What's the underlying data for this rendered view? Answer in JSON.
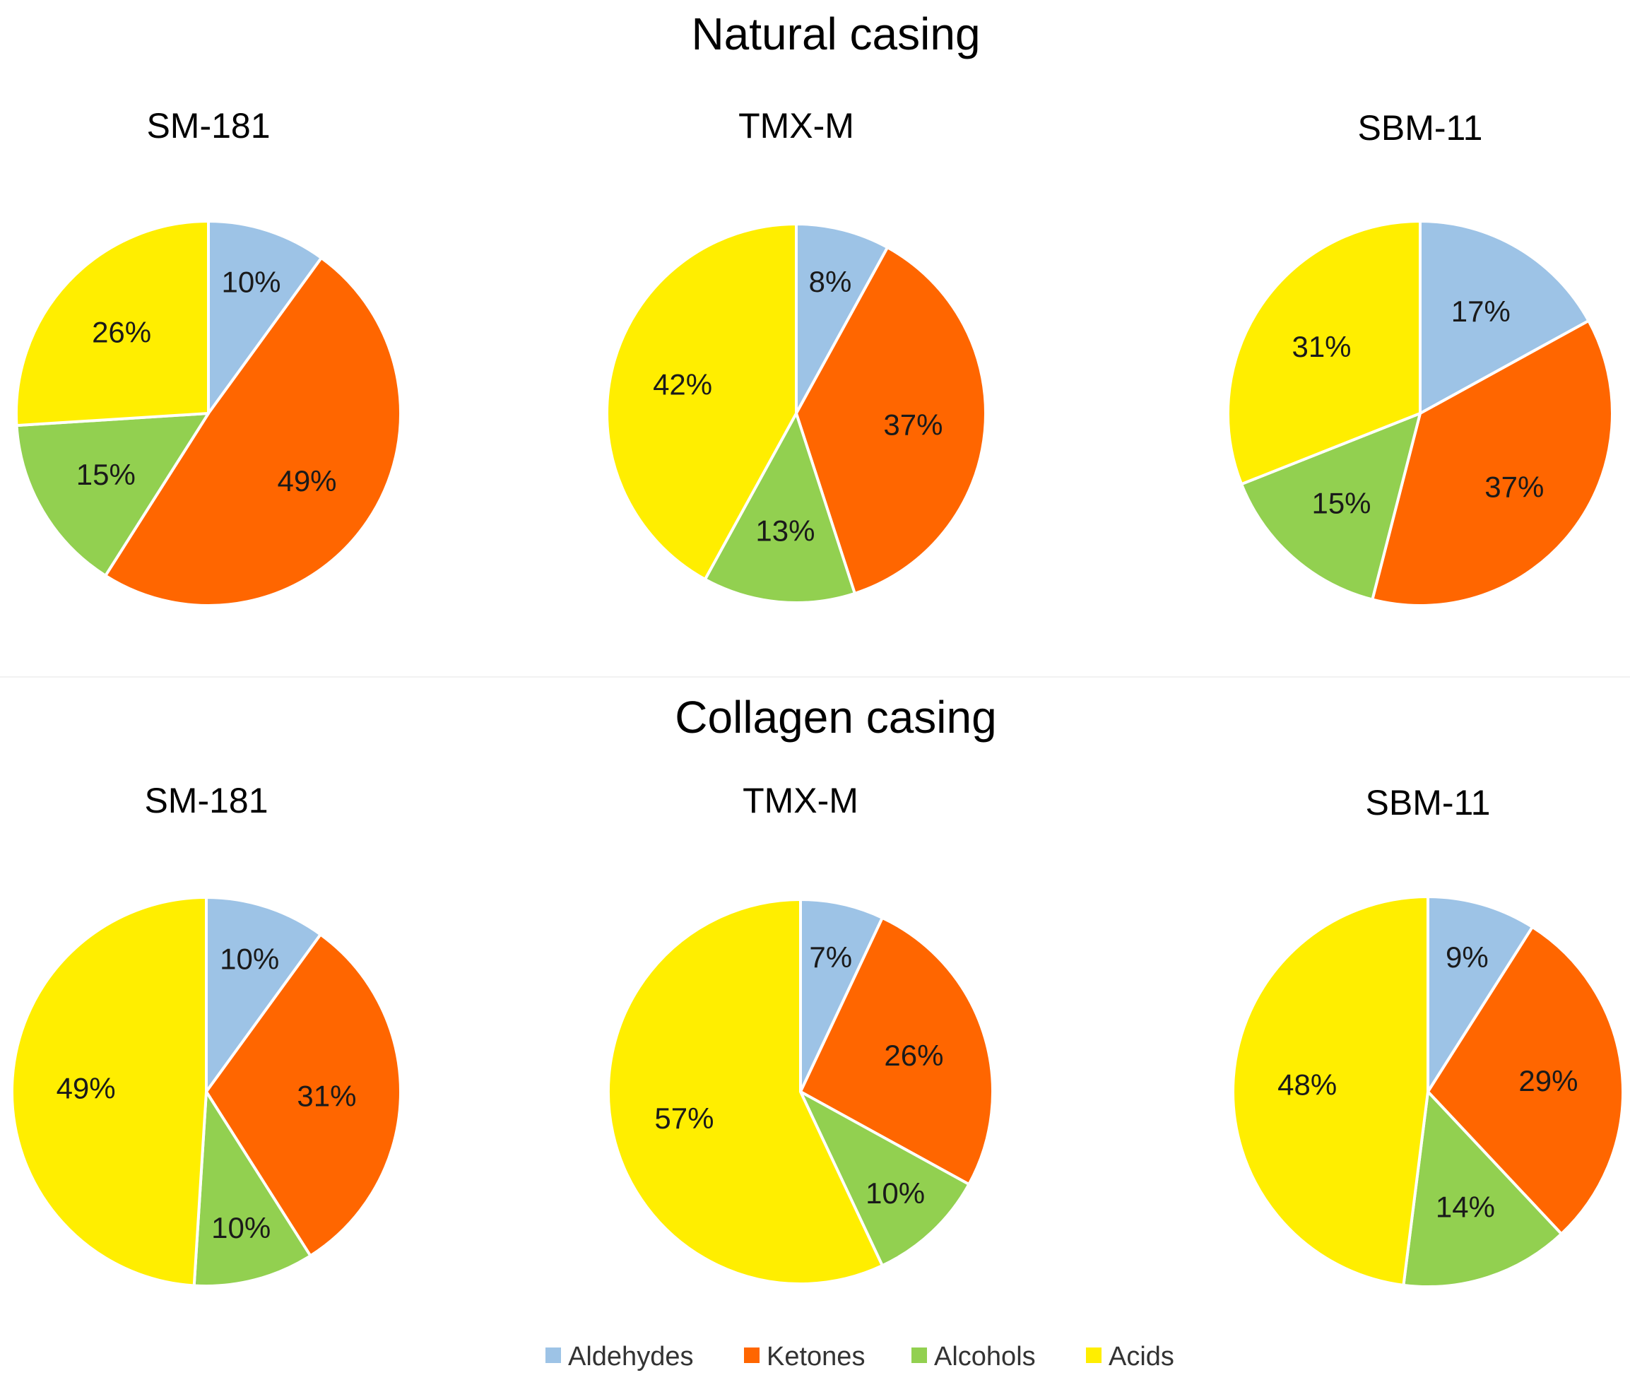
{
  "legend": [
    {
      "name": "Aldehydes",
      "color": "#9dc3e6"
    },
    {
      "name": "Ketones",
      "color": "#ff6600"
    },
    {
      "name": "Alcohols",
      "color": "#92d050"
    },
    {
      "name": "Acids",
      "color": "#ffee00"
    }
  ],
  "sections": [
    {
      "title": "Natural casing",
      "charts": [
        {
          "title": "SM-181",
          "labels": [
            "10%",
            "49%",
            "15%",
            "26%"
          ]
        },
        {
          "title": "TMX-M",
          "labels": [
            "8%",
            "37%",
            "13%",
            "42%"
          ]
        },
        {
          "title": "SBM-11",
          "labels": [
            "17%",
            "37%",
            "15%",
            "31%"
          ]
        }
      ]
    },
    {
      "title": "Collagen casing",
      "charts": [
        {
          "title": "SM-181",
          "labels": [
            "10%",
            "31%",
            "10%",
            "49%"
          ]
        },
        {
          "title": "TMX-M",
          "labels": [
            "7%",
            "26%",
            "10%",
            "57%"
          ]
        },
        {
          "title": "SBM-11",
          "labels": [
            "9%",
            "29%",
            "14%",
            "48%"
          ]
        }
      ]
    }
  ],
  "chart_data": [
    {
      "type": "pie",
      "title": "SM-181",
      "group": "Natural casing",
      "categories": [
        "Aldehydes",
        "Ketones",
        "Alcohols",
        "Acids"
      ],
      "values": [
        10,
        49,
        15,
        26
      ]
    },
    {
      "type": "pie",
      "title": "TMX-M",
      "group": "Natural casing",
      "categories": [
        "Aldehydes",
        "Ketones",
        "Alcohols",
        "Acids"
      ],
      "values": [
        8,
        37,
        13,
        42
      ]
    },
    {
      "type": "pie",
      "title": "SBM-11",
      "group": "Natural casing",
      "categories": [
        "Aldehydes",
        "Ketones",
        "Alcohols",
        "Acids"
      ],
      "values": [
        17,
        37,
        15,
        31
      ]
    },
    {
      "type": "pie",
      "title": "SM-181",
      "group": "Collagen casing",
      "categories": [
        "Aldehydes",
        "Ketones",
        "Alcohols",
        "Acids"
      ],
      "values": [
        10,
        31,
        10,
        49
      ]
    },
    {
      "type": "pie",
      "title": "TMX-M",
      "group": "Collagen casing",
      "categories": [
        "Aldehydes",
        "Ketones",
        "Alcohols",
        "Acids"
      ],
      "values": [
        7,
        26,
        10,
        57
      ]
    },
    {
      "type": "pie",
      "title": "SBM-11",
      "group": "Collagen casing",
      "categories": [
        "Aldehydes",
        "Ketones",
        "Alcohols",
        "Acids"
      ],
      "values": [
        9,
        29,
        14,
        48
      ]
    }
  ]
}
